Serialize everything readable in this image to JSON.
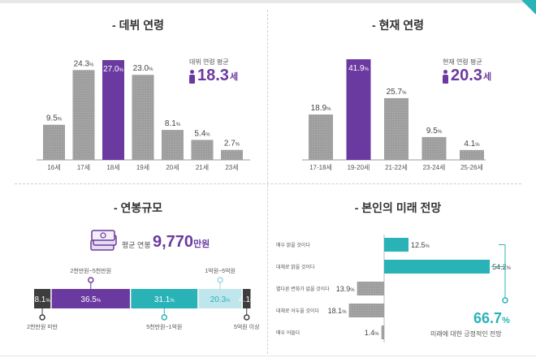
{
  "colors": {
    "gray": "#9e9e9e",
    "purple": "#6b3aa0",
    "teal": "#2ab3b7",
    "light_teal": "#bfe6ec",
    "dark": "#3d3d3d"
  },
  "debut_age": {
    "title": "- 데뷔 연령",
    "avg_label": "데뷔 연령 평균",
    "avg_value": "18.3",
    "avg_unit": "세",
    "icon": "person-icon"
  },
  "current_age": {
    "title": "- 현재 연령",
    "avg_label": "현재 연령 평균",
    "avg_value": "20.3",
    "avg_unit": "세",
    "icon": "person-icon"
  },
  "salary": {
    "title": "- 연봉규모",
    "avg_label": "평균 연봉",
    "avg_value": "9,770",
    "avg_unit": "만원",
    "icon": "money-icon"
  },
  "future": {
    "title": "- 본인의 미래 전망",
    "positive_value": "66.7",
    "positive_unit": "%",
    "positive_label": "미래에 대한 긍정적인 전망"
  },
  "chart_data": [
    {
      "type": "bar",
      "title": "- 데뷔 연령",
      "categories": [
        "16세",
        "17세",
        "18세",
        "19세",
        "20세",
        "21세",
        "23세"
      ],
      "values": [
        9.5,
        24.3,
        27.0,
        23.0,
        8.1,
        5.4,
        2.7
      ],
      "labels": [
        "9.5",
        "24.3",
        "27.0",
        "23.0",
        "8.1",
        "5.4",
        "2.7"
      ],
      "unit": "%",
      "highlight_index": 2
    },
    {
      "type": "bar",
      "title": "- 현재 연령",
      "categories": [
        "17-18세",
        "19-20세",
        "21-22세",
        "23-24세",
        "25-26세"
      ],
      "values": [
        18.9,
        41.9,
        25.7,
        9.5,
        4.1
      ],
      "labels": [
        "18.9",
        "41.9",
        "25.7",
        "9.5",
        "4.1"
      ],
      "unit": "%",
      "highlight_index": 1
    },
    {
      "type": "bar",
      "orientation": "stacked-horizontal",
      "title": "- 연봉규모",
      "categories": [
        "2천만원 미만",
        "2천만원~5천만원",
        "5천만원~1억원",
        "1억원~5억원",
        "5억원 이상"
      ],
      "values": [
        8.1,
        36.5,
        31.1,
        20.3,
        4.1
      ],
      "labels": [
        "8.1",
        "36.5",
        "31.1",
        "20.3",
        "4.1"
      ],
      "label_positions": [
        "below",
        "above",
        "below",
        "above",
        "below"
      ],
      "colors": [
        "#3d3d3d",
        "#6b3aa0",
        "#2ab3b7",
        "#bfe6ec",
        "#3d3d3d"
      ],
      "unit": "%"
    },
    {
      "type": "bar",
      "orientation": "diverging-horizontal",
      "title": "- 본인의 미래 전망",
      "categories": [
        "매우 밝을 것이다",
        "대체로 밝을 것이다",
        "별다른 변화가 없을 것이다",
        "대체로 어두울 것이다",
        "매우 어둡다"
      ],
      "values": [
        12.5,
        54.2,
        13.9,
        18.1,
        1.4
      ],
      "labels": [
        "12.5",
        "54.2",
        "13.9",
        "18.1",
        "1.4"
      ],
      "directions": [
        "right",
        "right",
        "left",
        "left",
        "left"
      ],
      "unit": "%"
    }
  ]
}
